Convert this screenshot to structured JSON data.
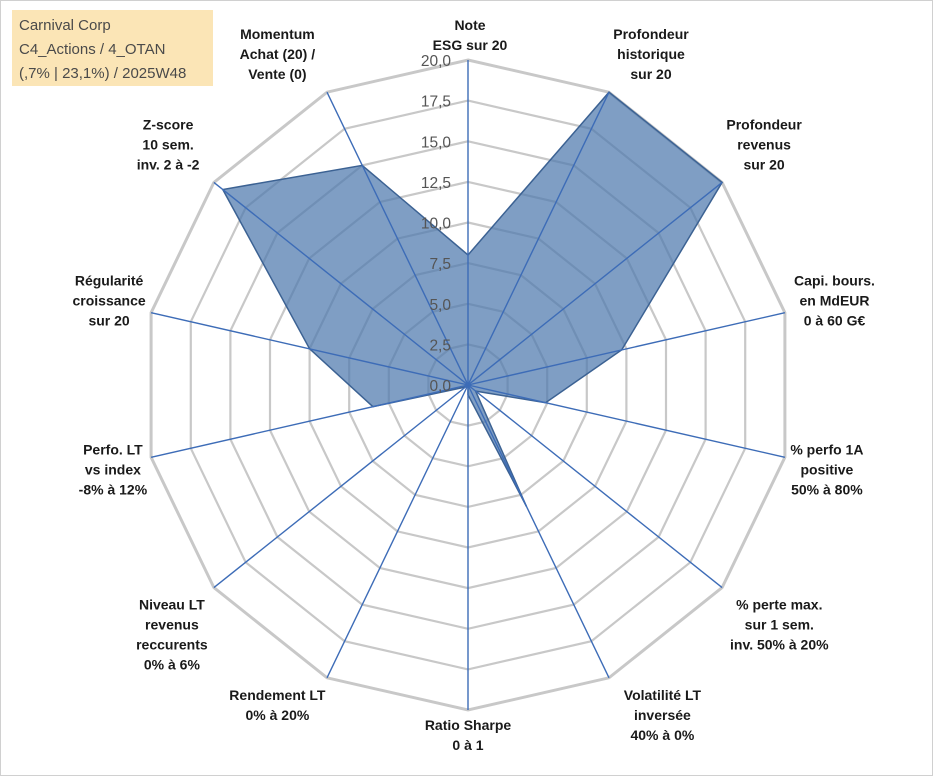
{
  "info": {
    "company": "Carnival Corp",
    "portfolio": "C4_Actions / 4_OTAN",
    "summary": "(,7% | 23,1%) / 2025W48"
  },
  "colors": {
    "area_fill": "#4e79ad",
    "area_stroke": "#3c6293",
    "axis_line": "#3d6cb7",
    "grid_line": "#c8c8c8",
    "info_bg": "#fbe5b6"
  },
  "chart_data": {
    "type": "radar",
    "title": "",
    "rmin": 0,
    "rmax": 20,
    "ticks": [
      "0,0",
      "2,5",
      "5,0",
      "7,5",
      "10,0",
      "12,5",
      "15,0",
      "17,5",
      "20,0"
    ],
    "tick_values": [
      0,
      2.5,
      5,
      7.5,
      10,
      12.5,
      15,
      17.5,
      20
    ],
    "axes": [
      {
        "label": [
          "Note",
          "ESG sur 20"
        ],
        "value": 8.0
      },
      {
        "label": [
          "Profondeur",
          "historique",
          "sur 20"
        ],
        "value": 20.0
      },
      {
        "label": [
          "Profondeur",
          "revenus",
          "sur 20"
        ],
        "value": 20.0
      },
      {
        "label": [
          "Capi. bours.",
          "en MdEUR",
          "0 à 60 G€"
        ],
        "value": 9.7
      },
      {
        "label": [
          "% perfo 1A",
          "positive",
          "50% à 80%"
        ],
        "value": 4.9
      },
      {
        "label": [
          "% perte max.",
          "sur 1 sem.",
          "inv. 50% à 20%"
        ],
        "value": 0.6
      },
      {
        "label": [
          "Volatilité LT",
          "inversée",
          "40% à 0%"
        ],
        "value": 8.3
      },
      {
        "label": [
          "Ratio Sharpe",
          "0 à 1"
        ],
        "value": 0.6
      },
      {
        "label": [
          "Rendement LT",
          "0% à 20%"
        ],
        "value": 0.0
      },
      {
        "label": [
          "Niveau LT",
          "revenus",
          "reccurents",
          "0% à 6%"
        ],
        "value": 0.2
      },
      {
        "label": [
          "Perfo. LT",
          "vs index",
          "-8% à 12%"
        ],
        "value": 6.0
      },
      {
        "label": [
          "Régularité",
          "croissance",
          "sur 20"
        ],
        "value": 10.0
      },
      {
        "label": [
          "Z-score",
          "10 sem.",
          "inv. 2 à -2"
        ],
        "value": 19.3
      },
      {
        "label": [
          "Momentum",
          "Achat (20) /",
          "Vente (0)"
        ],
        "value": 15.0
      }
    ]
  }
}
